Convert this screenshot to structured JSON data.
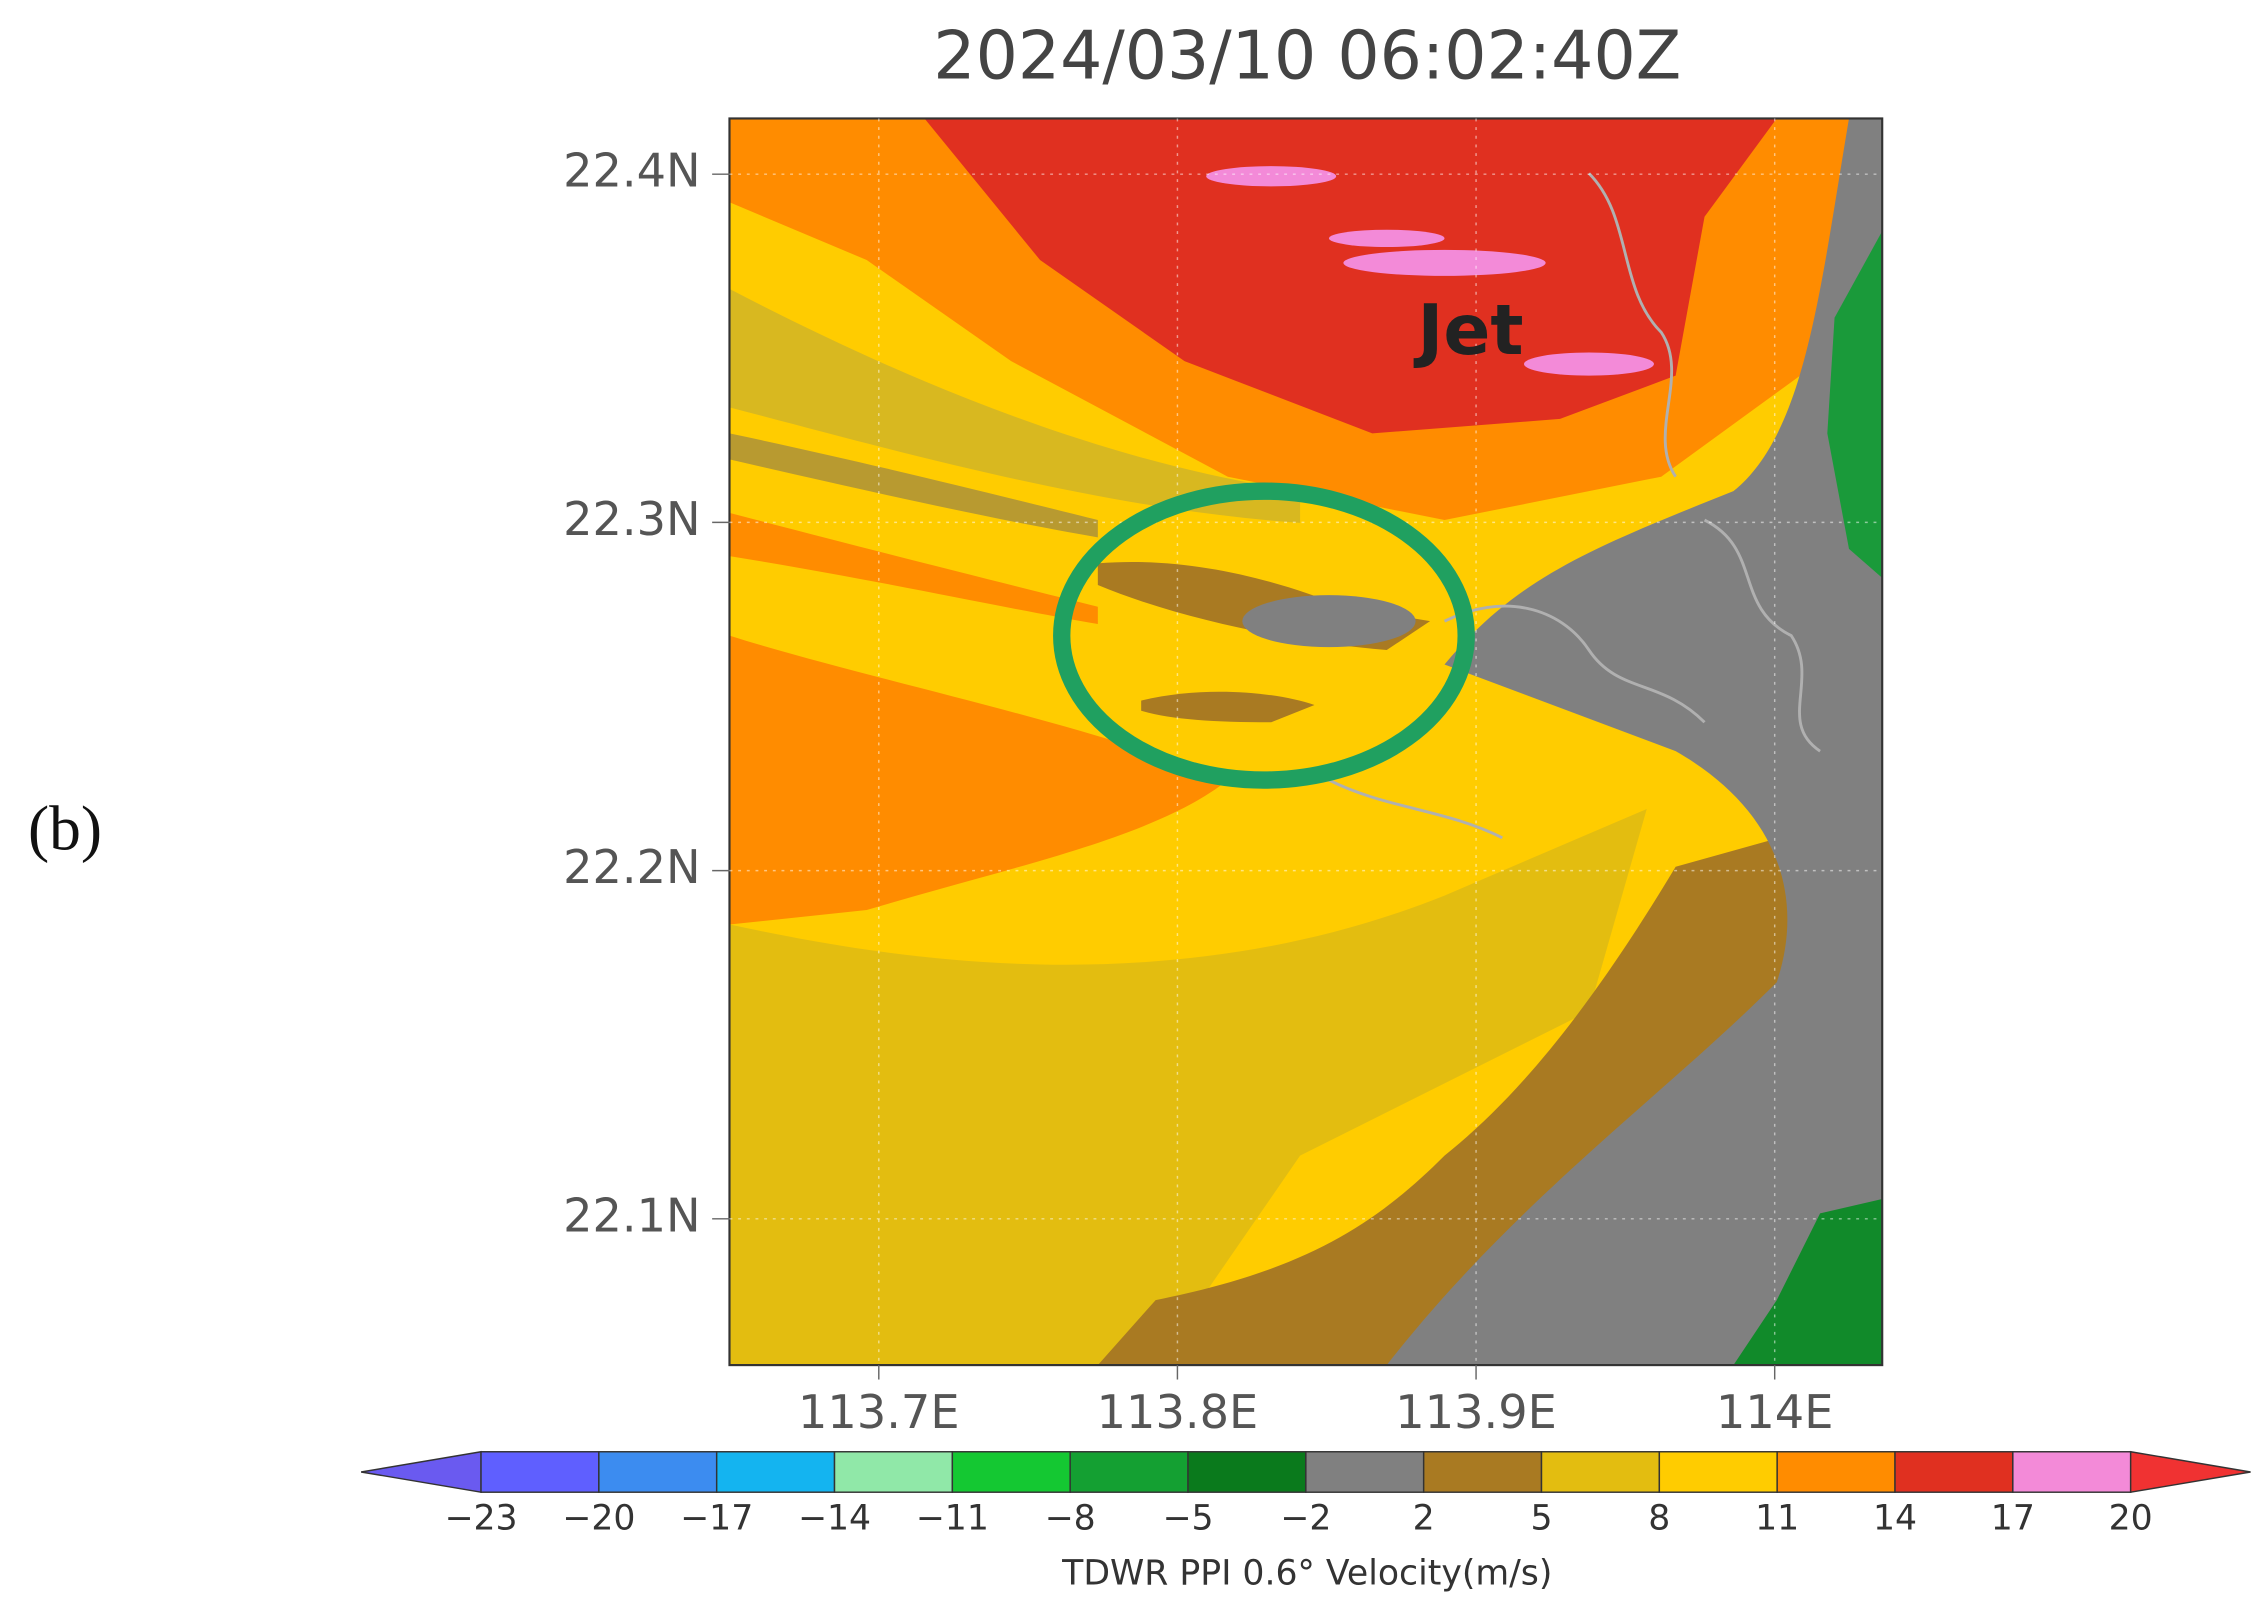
{
  "title": "2024/03/10 06:02:40Z",
  "panel_label": "(b)",
  "map": {
    "xlim": [
      113.65,
      114.036
    ],
    "ylim": [
      22.058,
      22.416
    ],
    "xticks": [
      {
        "value": 113.7,
        "label": "113.7E"
      },
      {
        "value": 113.8,
        "label": "113.8E"
      },
      {
        "value": 113.9,
        "label": "113.9E"
      },
      {
        "value": 114.0,
        "label": "114E"
      }
    ],
    "yticks": [
      {
        "value": 22.1,
        "label": "22.1N"
      },
      {
        "value": 22.2,
        "label": "22.2N"
      },
      {
        "value": 22.3,
        "label": "22.3N"
      },
      {
        "value": 22.4,
        "label": "22.4N"
      }
    ],
    "annotation": "Jet"
  },
  "colorbar": {
    "levels": [
      {
        "value": -23,
        "label": "−23"
      },
      {
        "value": -20,
        "label": "−20"
      },
      {
        "value": -17,
        "label": "−17"
      },
      {
        "value": -14,
        "label": "−14"
      },
      {
        "value": -11,
        "label": "−11"
      },
      {
        "value": -8,
        "label": "−8"
      },
      {
        "value": -5,
        "label": "−5"
      },
      {
        "value": -2,
        "label": "−2"
      },
      2,
      5,
      8,
      11,
      14,
      17,
      20
    ],
    "colors": [
      "#6a5af0",
      "#5f5fff",
      "#3c8cf0",
      "#14b4f0",
      "#90e8a8",
      "#14c832",
      "#14a032",
      "#0a7a1c",
      "#808080",
      "#a97a22",
      "#e3bd10",
      "#ffcc00",
      "#ff8c00",
      "#e03020",
      "#f38ad8",
      "#f03232"
    ],
    "label": "TDWR PPI 0.6° Velocity(m/s)"
  }
}
